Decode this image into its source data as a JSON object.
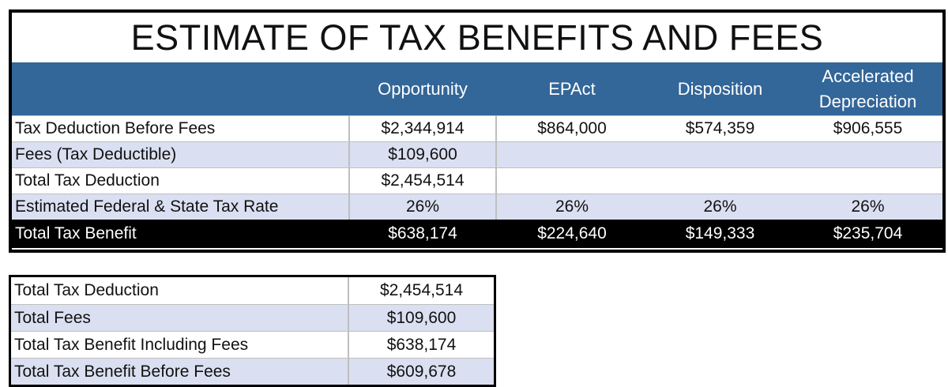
{
  "title": "ESTIMATE OF TAX BENEFITS AND FEES",
  "columns": [
    "Opportunity",
    "EPAct",
    "Disposition",
    "Accelerated Depreciation"
  ],
  "rows": [
    {
      "label": "Tax Deduction Before Fees",
      "values": [
        "$2,344,914",
        "$864,000",
        "$574,359",
        "$906,555"
      ]
    },
    {
      "label": "Fees (Tax Deductible)",
      "values": [
        "$109,600",
        "",
        "",
        ""
      ]
    },
    {
      "label": "Total Tax Deduction",
      "values": [
        "$2,454,514",
        "",
        "",
        ""
      ]
    },
    {
      "label": "Estimated Federal & State Tax Rate",
      "values": [
        "26%",
        "26%",
        "26%",
        "26%"
      ]
    }
  ],
  "total_row": {
    "label": "Total Tax Benefit",
    "values": [
      "$638,174",
      "$224,640",
      "$149,333",
      "$235,704"
    ]
  },
  "summary": [
    {
      "label": "Total Tax Deduction",
      "value": "$2,454,514"
    },
    {
      "label": "Total Fees",
      "value": "$109,600"
    },
    {
      "label": "Total Tax Benefit Including Fees",
      "value": "$638,174"
    },
    {
      "label": "Total Tax Benefit Before Fees",
      "value": "$609,678"
    }
  ],
  "colors": {
    "header": "#336699",
    "alt_row": "#dae0f1",
    "total_row": "#000000"
  }
}
